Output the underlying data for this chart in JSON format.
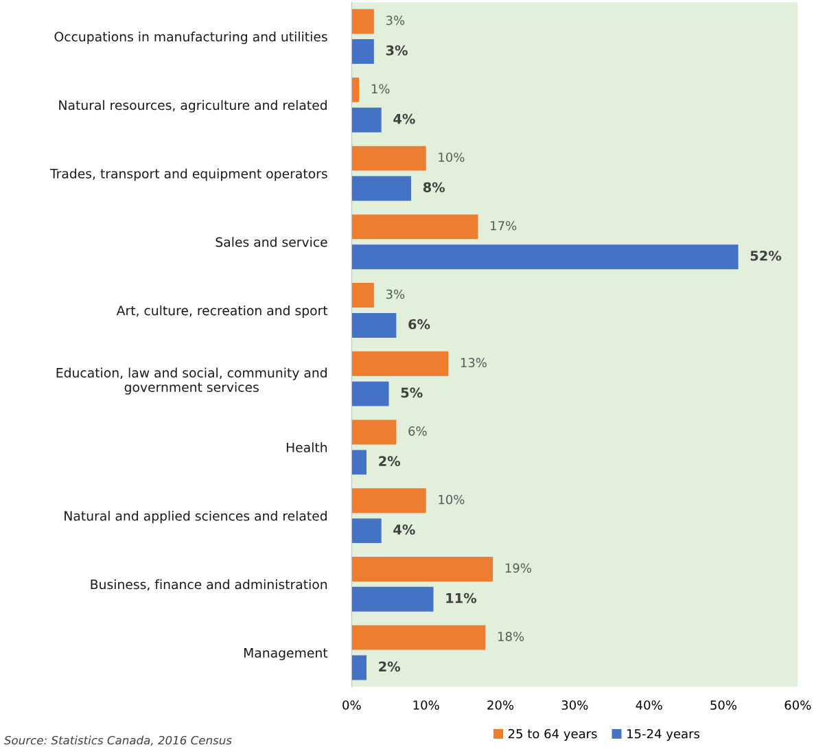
{
  "chart_data": {
    "type": "bar",
    "orientation": "horizontal",
    "categories": [
      "Occupations in manufacturing and utilities",
      "Natural resources, agriculture and related",
      "Trades, transport and equipment operators",
      "Sales and service",
      "Art, culture, recreation and sport",
      "Education, law and social, community and\ngovernment services",
      "Health",
      "Natural and applied sciences and related",
      "Business, finance and administration",
      "Management"
    ],
    "series": [
      {
        "name": "25 to 64 years",
        "color": "#ed7d31",
        "values": [
          3,
          1,
          10,
          17,
          3,
          13,
          6,
          10,
          19,
          18
        ],
        "value_labels": [
          "3%",
          "1%",
          "10%",
          "17%",
          "3%",
          "13%",
          "6%",
          "10%",
          "19%",
          "18%"
        ]
      },
      {
        "name": "15-24 years",
        "color": "#4472c4",
        "values": [
          3,
          4,
          8,
          52,
          6,
          5,
          2,
          4,
          11,
          2
        ],
        "value_labels": [
          "3%",
          "4%",
          "8%",
          "52%",
          "6%",
          "5%",
          "2%",
          "4%",
          "11%",
          "2%"
        ]
      }
    ],
    "xlim": [
      0,
      60
    ],
    "xticks": [
      {
        "value": 0,
        "label": "0%"
      },
      {
        "value": 10,
        "label": "10%"
      },
      {
        "value": 20,
        "label": "20%"
      },
      {
        "value": 30,
        "label": "30%"
      },
      {
        "value": 40,
        "label": "40%"
      },
      {
        "value": 50,
        "label": "50%"
      },
      {
        "value": 60,
        "label": "60%"
      }
    ],
    "grid": false,
    "legend": "bottom",
    "annotations": [
      "Source: Statistics Canada, 2016 Census"
    ]
  }
}
